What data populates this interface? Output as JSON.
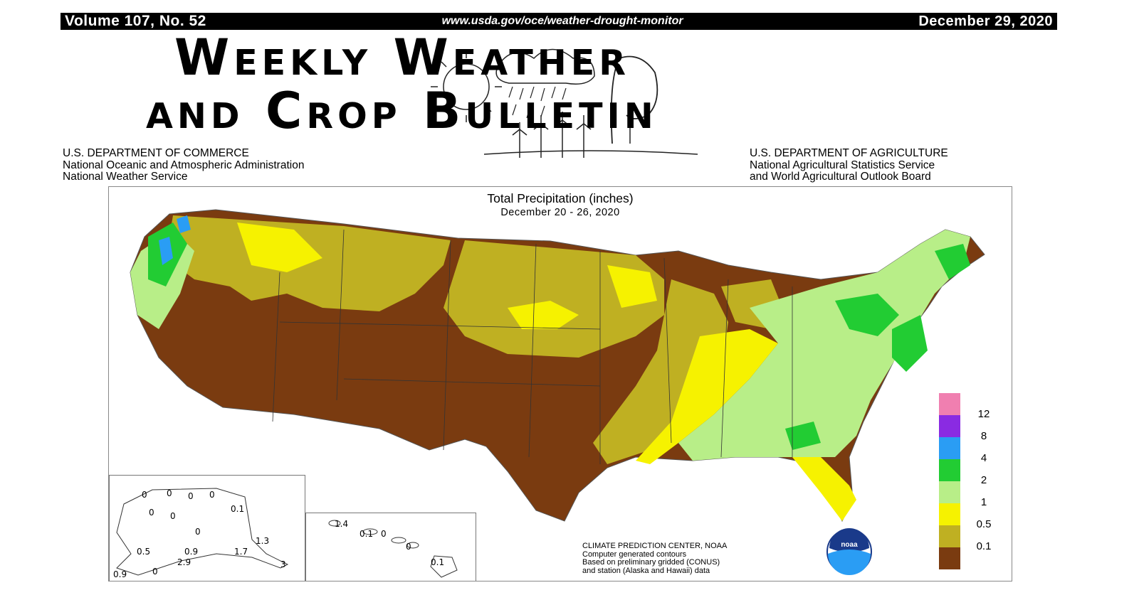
{
  "header": {
    "volume": "Volume 107, No. 52",
    "url": "www.usda.gov/oce/weather-drought-monitor",
    "date": "December 29, 2020",
    "title_line1": "Weekly Weather",
    "title_line2": "and Crop Bulletin"
  },
  "agencies": {
    "left": [
      "U.S. DEPARTMENT OF COMMERCE",
      "National Oceanic and Atmospheric Administration",
      "National Weather Service"
    ],
    "right": [
      "U.S. DEPARTMENT OF AGRICULTURE",
      "National Agricultural Statistics Service",
      "and World Agricultural Outlook Board"
    ]
  },
  "map": {
    "title": "Total Precipitation (inches)",
    "subtitle": "December 20 - 26, 2020",
    "credit": [
      "CLIMATE PREDICTION CENTER, NOAA",
      "Computer generated contours",
      "Based on preliminary gridded (CONUS)",
      "and station (Alaska and Hawaii) data"
    ],
    "logo_text": "noaa",
    "legend": [
      {
        "label": "12",
        "color": "#f07fb0"
      },
      {
        "label": "8",
        "color": "#8a2be2"
      },
      {
        "label": "4",
        "color": "#2a9df4"
      },
      {
        "label": "2",
        "color": "#22cc33"
      },
      {
        "label": "1",
        "color": "#b8ee88"
      },
      {
        "label": "0.5",
        "color": "#f6f200"
      },
      {
        "label": "0.1",
        "color": "#bfb022"
      },
      {
        "label": "",
        "color": "#7a3b10"
      }
    ],
    "alaska_labels": [
      "0",
      "0",
      "0",
      "0",
      "0",
      "0",
      "0",
      "0.5",
      "0.9",
      "1.3",
      "1.7",
      "2.9",
      "0.9",
      "0",
      "0.1",
      "3"
    ],
    "hawaii_labels": [
      "1.4",
      "0.1",
      "0",
      "0",
      "0.1"
    ]
  }
}
